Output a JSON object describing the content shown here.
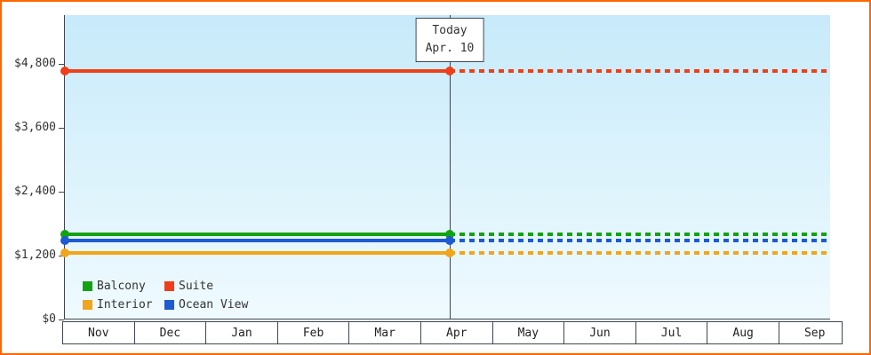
{
  "chart": {
    "frame_color": "#ff6600",
    "axis_color": "#3f4652"
  },
  "chart_data": {
    "type": "line",
    "x_categories": [
      "Nov",
      "Dec",
      "Jan",
      "Feb",
      "Mar",
      "Apr",
      "May",
      "Jun",
      "Jul",
      "Aug",
      "Sep"
    ],
    "y_ticks": [
      0,
      1200,
      2400,
      3600,
      4800
    ],
    "y_tick_labels": [
      "$0",
      "$1,200",
      "$2,400",
      "$3,600",
      "$4,800"
    ],
    "ylim": [
      0,
      5700
    ],
    "grid": false,
    "legend_position": "bottom-left-inside",
    "today": {
      "label": "Today",
      "date": "Apr. 10",
      "month_index": 5,
      "day_fraction": 0.33
    },
    "series": [
      {
        "name": "Balcony",
        "color": "#12a212",
        "value": 1600,
        "style": "solid-then-dotted"
      },
      {
        "name": "Suite",
        "color": "#ef3e19",
        "value": 4660,
        "style": "solid-then-dotted"
      },
      {
        "name": "Interior",
        "color": "#f1a51c",
        "value": 1250,
        "style": "solid-then-dotted"
      },
      {
        "name": "Ocean View",
        "color": "#1e5ad2",
        "value": 1480,
        "style": "solid-then-dotted"
      }
    ],
    "legend_order": [
      "Balcony",
      "Suite",
      "Interior",
      "Ocean View"
    ],
    "annotation": "Flat price lines across all months; solid before Today marker, dotted projection after"
  }
}
